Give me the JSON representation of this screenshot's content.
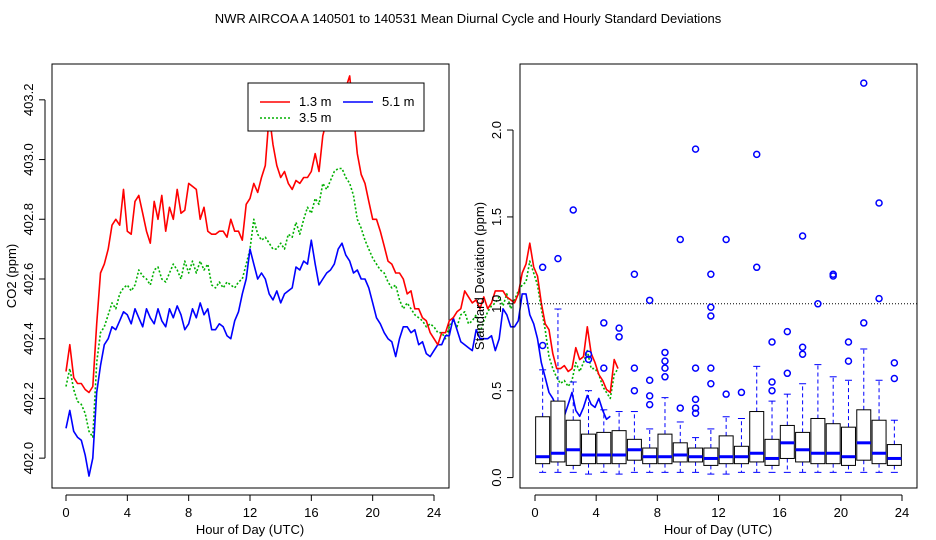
{
  "title": "NWR   AIRCOA A   140501 to 140531   Mean Diurnal Cycle and Hourly Standard Deviations",
  "chart_data": [
    {
      "type": "line",
      "xlabel": "Hour of Day (UTC)",
      "ylabel": "CO2 (ppm)",
      "xlim": [
        0,
        24
      ],
      "ylim": [
        401.9,
        403.32
      ],
      "xticks": [
        0,
        4,
        8,
        12,
        16,
        20,
        24
      ],
      "yticks": [
        402.0,
        402.2,
        402.4,
        402.6,
        402.8,
        403.0,
        403.2
      ],
      "ytick_labels": [
        "402.0",
        "402.2",
        "402.4",
        "402.6",
        "402.8",
        "403.0",
        "403.2"
      ],
      "legend_position": "top-right",
      "series": [
        {
          "name": "1.3 m",
          "color": "#ff0000",
          "dash": "solid",
          "x_step": 0.25,
          "values": [
            402.29,
            402.38,
            402.27,
            402.25,
            402.25,
            402.23,
            402.22,
            402.24,
            402.45,
            402.62,
            402.65,
            402.7,
            402.78,
            402.8,
            402.78,
            402.9,
            402.76,
            402.75,
            402.86,
            402.88,
            402.82,
            402.76,
            402.72,
            402.86,
            402.8,
            402.88,
            402.76,
            402.84,
            402.8,
            402.9,
            402.82,
            402.83,
            402.92,
            402.91,
            402.9,
            402.8,
            402.84,
            402.76,
            402.75,
            402.75,
            402.76,
            402.76,
            402.74,
            402.8,
            402.76,
            402.76,
            402.73,
            402.85,
            402.87,
            402.92,
            402.89,
            402.94,
            402.98,
            403.15,
            403.05,
            402.98,
            402.94,
            402.96,
            402.92,
            402.9,
            402.93,
            402.92,
            402.94,
            402.94,
            402.96,
            403.02,
            402.96,
            403.08,
            403.13,
            403.12,
            403.1,
            403.15,
            403.18,
            403.24,
            403.28,
            403.15,
            403.02,
            402.95,
            402.92,
            402.86,
            402.8,
            402.8,
            402.76,
            402.71,
            402.66,
            402.65,
            402.62,
            402.62,
            402.6,
            402.55,
            402.56,
            402.5,
            402.5,
            402.47,
            402.46,
            402.42,
            402.4,
            402.38,
            402.42,
            402.42,
            402.46,
            402.47,
            402.49,
            402.5,
            402.56,
            402.54,
            402.52,
            402.53,
            402.5,
            402.54,
            402.5,
            402.52,
            402.56,
            402.56,
            402.56,
            402.54,
            402.53,
            402.52,
            402.55,
            402.62,
            402.65,
            402.72,
            402.64,
            402.61,
            402.52,
            402.45,
            402.43,
            402.35,
            402.3,
            402.3,
            402.31,
            402.29,
            402.3,
            402.37,
            402.33,
            402.34,
            402.44,
            402.35,
            402.32,
            402.28,
            402.26,
            402.23,
            402.22,
            402.33,
            402.3
          ]
        },
        {
          "name": "3.5 m",
          "color": "#00b000",
          "dash": "dotted",
          "x_step": 0.25,
          "values": [
            402.24,
            402.3,
            402.23,
            402.19,
            402.18,
            402.15,
            402.09,
            402.07,
            402.32,
            402.42,
            402.44,
            402.48,
            402.52,
            402.5,
            402.55,
            402.57,
            402.58,
            402.56,
            402.58,
            402.63,
            402.61,
            402.6,
            402.58,
            402.63,
            402.64,
            402.6,
            402.59,
            402.62,
            402.65,
            402.63,
            402.6,
            402.66,
            402.62,
            402.66,
            402.62,
            402.66,
            402.63,
            402.65,
            402.58,
            402.57,
            402.59,
            402.57,
            402.59,
            402.58,
            402.57,
            402.59,
            402.6,
            402.65,
            402.7,
            402.8,
            402.75,
            402.73,
            402.74,
            402.72,
            402.7,
            402.7,
            402.72,
            402.7,
            402.75,
            402.74,
            402.79,
            402.75,
            402.8,
            402.84,
            402.82,
            402.87,
            402.85,
            402.92,
            402.9,
            402.93,
            402.96,
            402.97,
            402.97,
            402.94,
            402.92,
            402.88,
            402.8,
            402.77,
            402.73,
            402.7,
            402.67,
            402.65,
            402.63,
            402.62,
            402.59,
            402.57,
            402.58,
            402.53,
            402.5,
            402.52,
            402.5,
            402.48,
            402.47,
            402.46,
            402.44,
            402.45,
            402.44,
            402.42,
            402.42,
            402.4,
            402.44,
            402.46,
            402.44,
            402.48,
            402.49,
            402.45,
            402.46,
            402.48,
            402.42,
            402.46,
            402.49,
            402.51,
            402.52,
            402.54,
            402.51,
            402.55,
            402.5,
            402.53,
            402.56,
            402.58,
            402.59,
            402.66,
            402.62,
            402.58,
            402.5,
            402.43,
            402.34,
            402.3,
            402.27,
            402.25,
            402.26,
            402.24,
            402.26,
            402.32,
            402.29,
            402.32,
            402.36,
            402.3,
            402.3,
            402.28,
            402.24,
            402.22,
            402.2,
            402.28,
            402.3
          ]
        },
        {
          "name": "5.1 m",
          "color": "#0000ff",
          "dash": "solid",
          "x_step": 0.25,
          "values": [
            402.1,
            402.16,
            402.09,
            402.07,
            402.06,
            402.01,
            401.94,
            402.0,
            402.22,
            402.31,
            402.38,
            402.4,
            402.44,
            402.43,
            402.46,
            402.49,
            402.48,
            402.45,
            402.5,
            402.47,
            402.44,
            402.5,
            402.47,
            402.45,
            402.5,
            402.46,
            402.44,
            402.5,
            402.47,
            402.51,
            402.48,
            402.43,
            402.45,
            402.5,
            402.47,
            402.52,
            402.48,
            402.5,
            402.43,
            402.43,
            402.45,
            402.44,
            402.41,
            402.4,
            402.46,
            402.49,
            402.55,
            402.6,
            402.7,
            402.65,
            402.6,
            402.62,
            402.6,
            402.55,
            402.53,
            402.56,
            402.52,
            402.55,
            402.56,
            402.57,
            402.64,
            402.63,
            402.66,
            402.65,
            402.73,
            402.65,
            402.58,
            402.6,
            402.62,
            402.63,
            402.65,
            402.7,
            402.72,
            402.68,
            402.66,
            402.62,
            402.63,
            402.6,
            402.6,
            402.57,
            402.52,
            402.47,
            402.45,
            402.42,
            402.4,
            402.39,
            402.34,
            402.4,
            402.44,
            402.44,
            402.42,
            402.43,
            402.38,
            402.39,
            402.35,
            402.34,
            402.36,
            402.38,
            402.38,
            402.41,
            402.41,
            402.47,
            402.43,
            402.39,
            402.38,
            402.37,
            402.36,
            402.43,
            402.4,
            402.4,
            402.4,
            402.41,
            402.36,
            402.4,
            402.5,
            402.48,
            402.44,
            402.44,
            402.46,
            402.55,
            402.55,
            402.48,
            402.45,
            402.4,
            402.32,
            402.27,
            402.22,
            402.2,
            402.17,
            402.15,
            402.14,
            402.18,
            402.22,
            402.16,
            402.14,
            402.17,
            402.21,
            402.18,
            402.17,
            402.2,
            402.16,
            402.13,
            402.14
          ]
        }
      ]
    },
    {
      "type": "box",
      "xlabel": "Hour of Day (UTC)",
      "ylabel": "Standard Deviation (ppm)",
      "xlim": [
        0,
        24
      ],
      "ylim": [
        -0.06,
        2.38
      ],
      "xticks": [
        0,
        4,
        8,
        12,
        16,
        20,
        24
      ],
      "yticks": [
        0.0,
        0.5,
        1.0,
        1.5,
        2.0
      ],
      "ytick_labels": [
        "0.0",
        "0.5",
        "1.0",
        "1.5",
        "2.0"
      ],
      "reference_line": 1.0,
      "color": "#0000ff",
      "boxes": [
        {
          "hour": 0.5,
          "lw": 0.03,
          "q1": 0.08,
          "median": 0.12,
          "q3": 0.35,
          "uw": 0.62,
          "outliers": [
            0.76,
            1.21
          ]
        },
        {
          "hour": 1.5,
          "lw": 0.03,
          "q1": 0.09,
          "median": 0.14,
          "q3": 0.44,
          "uw": 0.97,
          "outliers": [
            1.26
          ]
        },
        {
          "hour": 2.5,
          "lw": 0.03,
          "q1": 0.07,
          "median": 0.16,
          "q3": 0.33,
          "uw": 0.55,
          "outliers": [
            1.54
          ]
        },
        {
          "hour": 3.5,
          "lw": 0.02,
          "q1": 0.08,
          "median": 0.13,
          "q3": 0.25,
          "uw": 0.5,
          "outliers": [
            0.68,
            0.71
          ]
        },
        {
          "hour": 4.5,
          "lw": 0.03,
          "q1": 0.08,
          "median": 0.13,
          "q3": 0.26,
          "uw": 0.39,
          "outliers": [
            0.63,
            0.89
          ]
        },
        {
          "hour": 5.5,
          "lw": 0.02,
          "q1": 0.08,
          "median": 0.13,
          "q3": 0.27,
          "uw": 0.38,
          "outliers": [
            0.81,
            0.86
          ]
        },
        {
          "hour": 6.5,
          "lw": 0.03,
          "q1": 0.1,
          "median": 0.16,
          "q3": 0.22,
          "uw": 0.38,
          "outliers": [
            0.5,
            0.63,
            1.17
          ]
        },
        {
          "hour": 7.5,
          "lw": 0.03,
          "q1": 0.08,
          "median": 0.12,
          "q3": 0.17,
          "uw": 0.28,
          "outliers": [
            0.42,
            0.47,
            0.56,
            1.02
          ]
        },
        {
          "hour": 8.5,
          "lw": 0.03,
          "q1": 0.08,
          "median": 0.12,
          "q3": 0.25,
          "uw": 0.46,
          "outliers": [
            0.58,
            0.63,
            0.67,
            0.72
          ]
        },
        {
          "hour": 9.5,
          "lw": 0.03,
          "q1": 0.09,
          "median": 0.13,
          "q3": 0.2,
          "uw": 0.32,
          "outliers": [
            0.4,
            1.37
          ]
        },
        {
          "hour": 10.5,
          "lw": 0.03,
          "q1": 0.09,
          "median": 0.12,
          "q3": 0.17,
          "uw": 0.23,
          "outliers": [
            0.37,
            0.4,
            0.45,
            0.63,
            1.89
          ]
        },
        {
          "hour": 11.5,
          "lw": 0.02,
          "q1": 0.07,
          "median": 0.11,
          "q3": 0.17,
          "uw": 0.28,
          "outliers": [
            0.54,
            0.63,
            0.93,
            0.98,
            1.17
          ]
        },
        {
          "hour": 12.5,
          "lw": 0.02,
          "q1": 0.08,
          "median": 0.12,
          "q3": 0.24,
          "uw": 0.35,
          "outliers": [
            0.48,
            1.37
          ]
        },
        {
          "hour": 13.5,
          "lw": 0.03,
          "q1": 0.08,
          "median": 0.12,
          "q3": 0.18,
          "uw": 0.34,
          "outliers": [
            0.49
          ]
        },
        {
          "hour": 14.5,
          "lw": 0.03,
          "q1": 0.09,
          "median": 0.14,
          "q3": 0.38,
          "uw": 0.64,
          "outliers": [
            1.21,
            1.86
          ]
        },
        {
          "hour": 15.5,
          "lw": 0.03,
          "q1": 0.07,
          "median": 0.11,
          "q3": 0.22,
          "uw": 0.44,
          "outliers": [
            0.5,
            0.55,
            0.78
          ]
        },
        {
          "hour": 16.5,
          "lw": 0.03,
          "q1": 0.11,
          "median": 0.2,
          "q3": 0.3,
          "uw": 0.48,
          "outliers": [
            0.6,
            0.84
          ]
        },
        {
          "hour": 17.5,
          "lw": 0.03,
          "q1": 0.09,
          "median": 0.16,
          "q3": 0.26,
          "uw": 0.54,
          "outliers": [
            0.71,
            0.75,
            1.39
          ]
        },
        {
          "hour": 18.5,
          "lw": 0.03,
          "q1": 0.08,
          "median": 0.14,
          "q3": 0.34,
          "uw": 0.65,
          "outliers": [
            1.0
          ]
        },
        {
          "hour": 19.5,
          "lw": 0.03,
          "q1": 0.08,
          "median": 0.14,
          "q3": 0.31,
          "uw": 0.58,
          "outliers": [
            1.16,
            1.17
          ]
        },
        {
          "hour": 20.5,
          "lw": 0.03,
          "q1": 0.07,
          "median": 0.12,
          "q3": 0.29,
          "uw": 0.56,
          "outliers": [
            0.67,
            0.78
          ]
        },
        {
          "hour": 21.5,
          "lw": 0.03,
          "q1": 0.1,
          "median": 0.2,
          "q3": 0.39,
          "uw": 0.74,
          "outliers": [
            0.89,
            2.27
          ]
        },
        {
          "hour": 22.5,
          "lw": 0.03,
          "q1": 0.08,
          "median": 0.14,
          "q3": 0.33,
          "uw": 0.56,
          "outliers": [
            1.03,
            1.58
          ]
        },
        {
          "hour": 23.5,
          "lw": 0.03,
          "q1": 0.07,
          "median": 0.11,
          "q3": 0.19,
          "uw": 0.33,
          "outliers": [
            0.57,
            0.66
          ]
        }
      ]
    }
  ]
}
